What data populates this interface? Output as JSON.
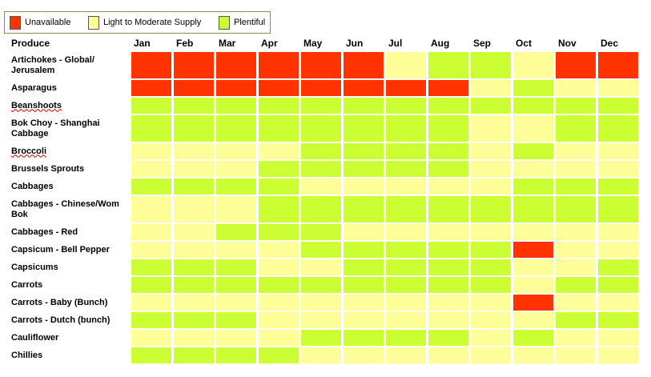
{
  "legend": [
    {
      "label": "Unavailable",
      "status": "U"
    },
    {
      "label": "Light to Moderate Supply",
      "status": "L"
    },
    {
      "label": "Plentiful",
      "status": "P"
    }
  ],
  "colors": {
    "U": "#ff3300",
    "L": "#ffff99",
    "P": "#ccff33"
  },
  "header": {
    "produce": "Produce",
    "months": [
      "Jan",
      "Feb",
      "Mar",
      "Apr",
      "May",
      "Jun",
      "Jul",
      "Aug",
      "Sep",
      "Oct",
      "Nov",
      "Dec"
    ]
  },
  "rows": [
    {
      "name": "Artichokes - Global/ Jerusalem",
      "tall": true,
      "spell": false,
      "status": [
        "U",
        "U",
        "U",
        "U",
        "U",
        "U",
        "L",
        "P",
        "P",
        "L",
        "U",
        "U"
      ]
    },
    {
      "name": "Asparagus",
      "tall": false,
      "spell": false,
      "status": [
        "U",
        "U",
        "U",
        "U",
        "U",
        "U",
        "U",
        "U",
        "L",
        "P",
        "L",
        "L"
      ]
    },
    {
      "name": "Beanshoots",
      "tall": false,
      "spell": true,
      "status": [
        "P",
        "P",
        "P",
        "P",
        "P",
        "P",
        "P",
        "P",
        "P",
        "P",
        "P",
        "P"
      ]
    },
    {
      "name": "Bok Choy - Shanghai Cabbage",
      "tall": true,
      "spell": false,
      "status": [
        "P",
        "P",
        "P",
        "P",
        "P",
        "P",
        "P",
        "P",
        "L",
        "L",
        "P",
        "P"
      ]
    },
    {
      "name": "Broccoli",
      "tall": false,
      "spell": true,
      "status": [
        "L",
        "L",
        "L",
        "L",
        "P",
        "P",
        "P",
        "P",
        "L",
        "P",
        "L",
        "L"
      ]
    },
    {
      "name": "Brussels Sprouts",
      "tall": false,
      "spell": false,
      "status": [
        "L",
        "L",
        "L",
        "P",
        "P",
        "P",
        "P",
        "P",
        "L",
        "L",
        "L",
        "L"
      ]
    },
    {
      "name": "Cabbages",
      "tall": false,
      "spell": false,
      "status": [
        "P",
        "P",
        "P",
        "P",
        "L",
        "L",
        "L",
        "L",
        "L",
        "P",
        "P",
        "P"
      ]
    },
    {
      "name": "Cabbages - Chinese/Wom Bok",
      "tall": true,
      "spell": false,
      "status": [
        "L",
        "L",
        "L",
        "P",
        "P",
        "P",
        "P",
        "P",
        "P",
        "P",
        "P",
        "P"
      ]
    },
    {
      "name": "Cabbages - Red",
      "tall": false,
      "spell": false,
      "status": [
        "L",
        "L",
        "P",
        "P",
        "P",
        "L",
        "L",
        "L",
        "L",
        "L",
        "L",
        "L"
      ]
    },
    {
      "name": "Capsicum - Bell Pepper",
      "tall": false,
      "spell": false,
      "status": [
        "L",
        "L",
        "L",
        "L",
        "P",
        "P",
        "P",
        "P",
        "P",
        "U",
        "L",
        "L"
      ]
    },
    {
      "name": "Capsicums",
      "tall": false,
      "spell": false,
      "status": [
        "P",
        "P",
        "P",
        "L",
        "L",
        "P",
        "P",
        "P",
        "P",
        "L",
        "L",
        "P"
      ]
    },
    {
      "name": "Carrots",
      "tall": false,
      "spell": false,
      "status": [
        "P",
        "P",
        "P",
        "P",
        "P",
        "P",
        "P",
        "P",
        "P",
        "L",
        "P",
        "P"
      ]
    },
    {
      "name": "Carrots - Baby (Bunch)",
      "tall": false,
      "spell": false,
      "status": [
        "L",
        "L",
        "L",
        "L",
        "L",
        "L",
        "L",
        "L",
        "L",
        "U",
        "L",
        "L"
      ]
    },
    {
      "name": "Carrots - Dutch (bunch)",
      "tall": false,
      "spell": false,
      "status": [
        "P",
        "P",
        "P",
        "L",
        "L",
        "L",
        "L",
        "L",
        "L",
        "L",
        "P",
        "P"
      ]
    },
    {
      "name": "Cauliflower",
      "tall": false,
      "spell": false,
      "status": [
        "L",
        "L",
        "L",
        "L",
        "P",
        "P",
        "P",
        "P",
        "L",
        "P",
        "L",
        "L"
      ]
    },
    {
      "name": "Chillies",
      "tall": false,
      "spell": false,
      "status": [
        "P",
        "P",
        "P",
        "P",
        "L",
        "L",
        "L",
        "L",
        "L",
        "L",
        "L",
        "L"
      ]
    }
  ]
}
